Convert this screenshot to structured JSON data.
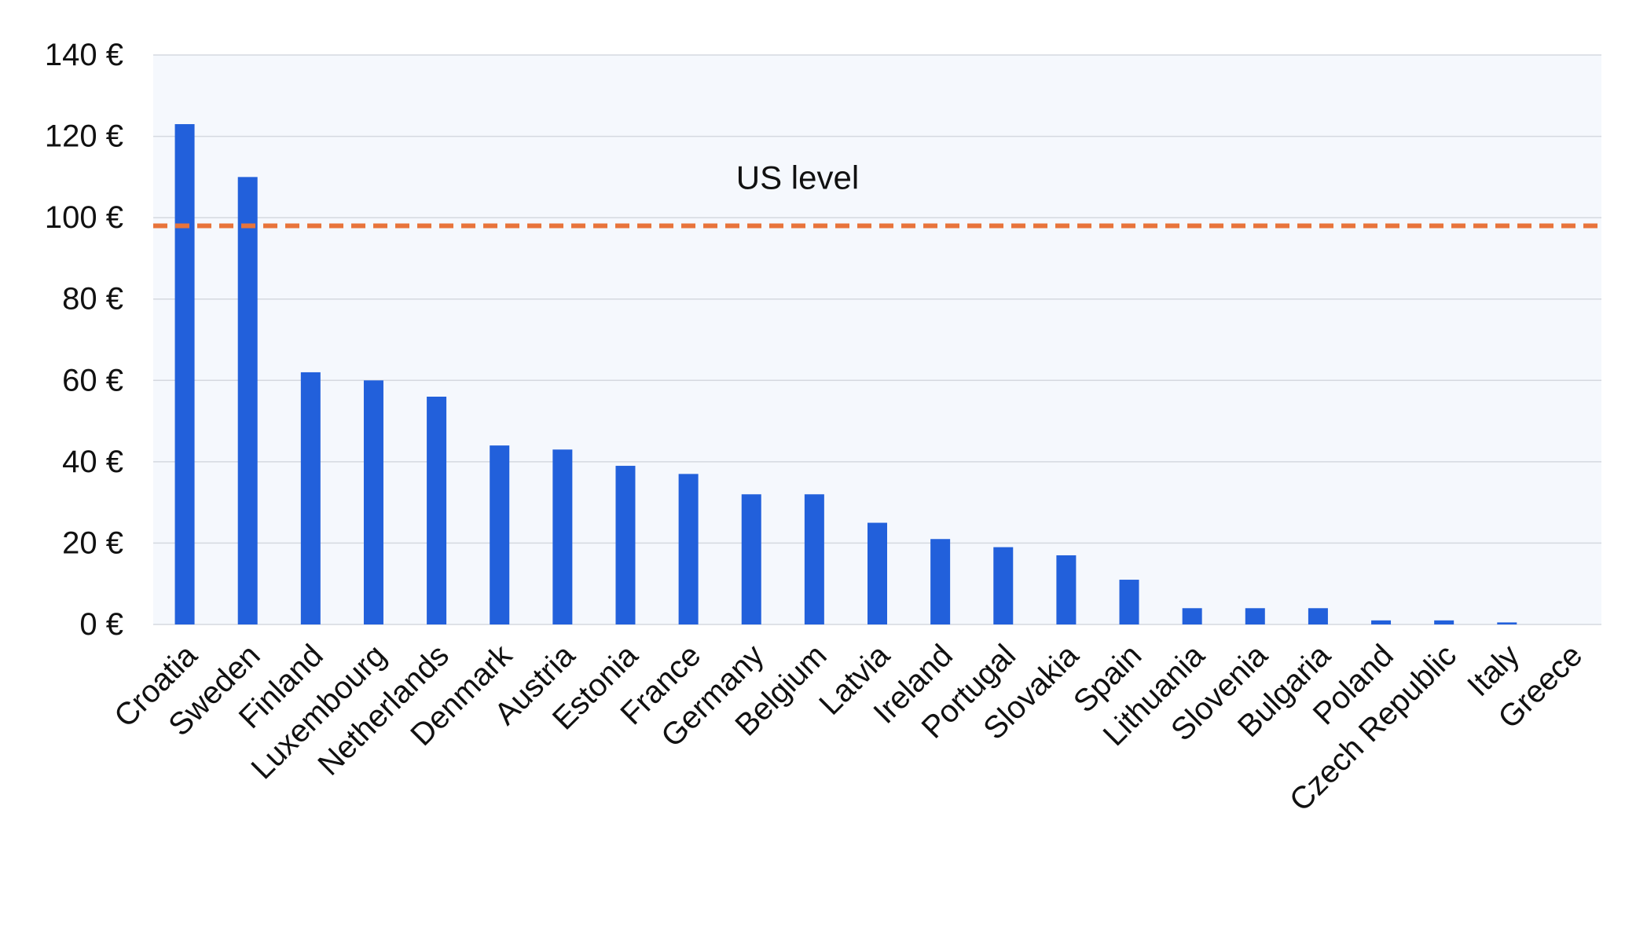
{
  "chart_data": {
    "type": "bar",
    "categories": [
      "Croatia",
      "Sweden",
      "Finland",
      "Luxembourg",
      "Netherlands",
      "Denmark",
      "Austria",
      "Estonia",
      "France",
      "Germany",
      "Belgium",
      "Latvia",
      "Ireland",
      "Portugal",
      "Slovakia",
      "Spain",
      "Lithuania",
      "Slovenia",
      "Bulgaria",
      "Poland",
      "Czech Republic",
      "Italy",
      "Greece"
    ],
    "values": [
      123,
      110,
      62,
      60,
      56,
      44,
      43,
      39,
      37,
      32,
      32,
      25,
      21,
      19,
      17,
      11,
      4,
      4,
      4,
      1,
      1,
      0.5,
      0
    ],
    "y_tick_labels": [
      "0 €",
      "20 €",
      "40 €",
      "60 €",
      "80 €",
      "100 €",
      "120 €",
      "140 €"
    ],
    "y_ticks": [
      0,
      20,
      40,
      60,
      80,
      100,
      120,
      140
    ],
    "ylim": [
      0,
      140
    ],
    "grid": true,
    "reference_line": {
      "label": "US level",
      "value": 98,
      "color": "#E8743B",
      "style": "dashed"
    },
    "colors": {
      "bar": "#2260DB",
      "plot_background": "#F5F8FD",
      "grid": "#D5D9E0"
    },
    "title": "",
    "xlabel": "",
    "ylabel": ""
  }
}
